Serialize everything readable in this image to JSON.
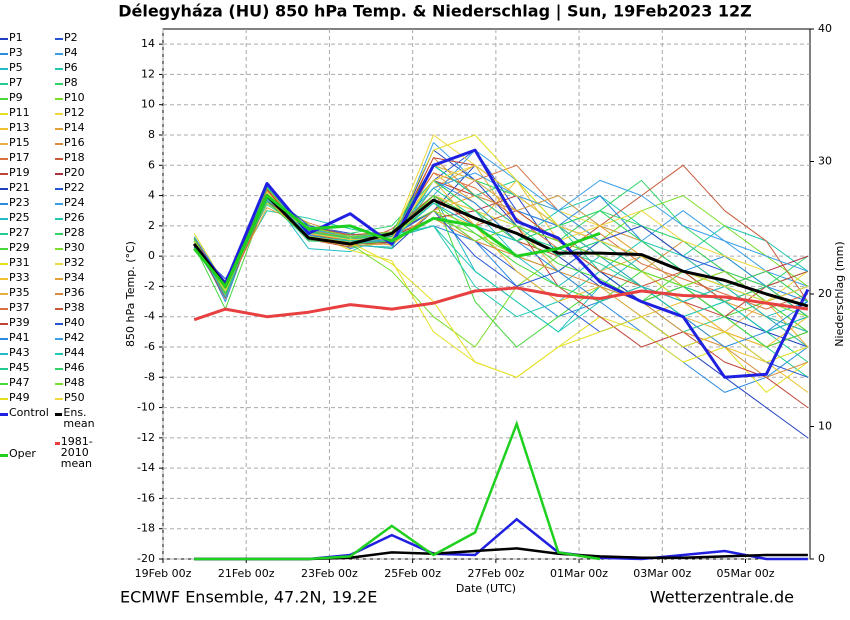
{
  "chart_data": {
    "type": "line",
    "title": "Délegyháza  (HU)  850 hPa Temp. & Niederschlag | Sun, 19Feb2023 12Z",
    "source": "ECMWF Ensemble, 47.2N, 19.2E",
    "credit": "Wetterzentrale.de",
    "xlabel": "Date (UTC)",
    "ylabel": "850 hPa Temp. (°C)",
    "y2label": "Niederschlag (mm)",
    "xlim": [
      0,
      15.55
    ],
    "xticks": [
      {
        "value": 0,
        "label": "19Feb 00z"
      },
      {
        "value": 2,
        "label": "21Feb 00z"
      },
      {
        "value": 4,
        "label": "23Feb 00z"
      },
      {
        "value": 6,
        "label": "25Feb 00z"
      },
      {
        "value": 8,
        "label": "27Feb 00z"
      },
      {
        "value": 10,
        "label": "01Mar 00z"
      },
      {
        "value": 12,
        "label": "03Mar 00z"
      },
      {
        "value": 14,
        "label": "05Mar 00z"
      }
    ],
    "ylim": [
      -20,
      15
    ],
    "yticks": [
      -20,
      -18,
      -16,
      -14,
      -12,
      -10,
      -8,
      -6,
      -4,
      -2,
      0,
      2,
      4,
      6,
      8,
      10,
      12,
      14
    ],
    "y2lim": [
      0,
      40
    ],
    "y2ticks": [
      0,
      10,
      20,
      30,
      40
    ],
    "grid": true,
    "x": [
      0.75,
      1.5,
      2.5,
      3.5,
      4.5,
      5.5,
      6.5,
      7.5,
      8.5,
      9.5,
      10.5,
      11.5,
      12.5,
      13.5,
      14.5,
      15.5
    ],
    "series": [
      {
        "name": "P1",
        "color": "#1f3fbf",
        "values": [
          1,
          -2.5,
          4,
          1.2,
          0.8,
          0.5,
          3,
          6,
          4,
          0,
          -2,
          -4,
          -6,
          -8,
          -10,
          -12
        ]
      },
      {
        "name": "P2",
        "color": "#2554d4",
        "values": [
          0.5,
          -1.5,
          3.5,
          2,
          1.5,
          1,
          5,
          7,
          3,
          2,
          1,
          0,
          -1,
          -3,
          -5,
          -4
        ]
      },
      {
        "name": "P3",
        "color": "#2a8ae0",
        "values": [
          1.2,
          -3,
          4.5,
          1.8,
          0.5,
          1.2,
          2,
          1,
          -2,
          -4,
          -3,
          -5,
          -7,
          -9,
          -8,
          -6
        ]
      },
      {
        "name": "P4",
        "color": "#3a9fe8",
        "values": [
          0.8,
          -2,
          3.8,
          1,
          1,
          0.8,
          7.5,
          5,
          3,
          4,
          2,
          1,
          3,
          1,
          -1,
          -2
        ]
      },
      {
        "name": "P5",
        "color": "#22bcc8",
        "values": [
          1,
          -2.2,
          4.2,
          0.5,
          0.3,
          1.5,
          4,
          -1,
          -3,
          -5,
          -2,
          0,
          -1,
          -2,
          -4,
          -3
        ]
      },
      {
        "name": "P6",
        "color": "#20c8b0",
        "values": [
          0.6,
          -1.8,
          3,
          2.5,
          1.8,
          1.3,
          3.5,
          2,
          1,
          3,
          4,
          2,
          0,
          2,
          1,
          -1
        ]
      },
      {
        "name": "P7",
        "color": "#22cc90",
        "values": [
          1.1,
          -2.6,
          4.8,
          1.5,
          0.8,
          0.5,
          6,
          4,
          5,
          2,
          -1,
          -3,
          -5,
          -4,
          -6,
          -8
        ]
      },
      {
        "name": "P8",
        "color": "#30d468",
        "values": [
          0.9,
          -2,
          3.6,
          1.2,
          1.5,
          2,
          5,
          3,
          2,
          1,
          3,
          5,
          2,
          0,
          -2,
          0
        ]
      },
      {
        "name": "P9",
        "color": "#46d83e",
        "values": [
          0.7,
          -3.5,
          3.9,
          1.8,
          1,
          1.6,
          4,
          -3,
          -6,
          -4,
          -2,
          -3,
          -1,
          -2,
          -3,
          -5
        ]
      },
      {
        "name": "P10",
        "color": "#7add28",
        "values": [
          1,
          -2.3,
          4.1,
          2.1,
          0.6,
          1,
          2.5,
          1.5,
          0,
          -1,
          1,
          3,
          4,
          2,
          0,
          -2
        ]
      },
      {
        "name": "P11",
        "color": "#e4e020",
        "values": [
          1.5,
          -1.9,
          4.5,
          1.6,
          0.4,
          -0.3,
          -5,
          -7,
          -8,
          -6,
          -4,
          -5,
          -7,
          -6,
          -9,
          -7
        ]
      },
      {
        "name": "P12",
        "color": "#f0d840",
        "values": [
          0.8,
          -2.1,
          3.7,
          1.3,
          0.9,
          1.2,
          8,
          6,
          4,
          3,
          2,
          0,
          -2,
          -4,
          -3,
          -1
        ]
      },
      {
        "name": "P13",
        "color": "#eec030",
        "values": [
          1,
          -2.4,
          4,
          1,
          1.2,
          0.7,
          3,
          2,
          5,
          1,
          -1,
          -2,
          -4,
          -6,
          -7,
          -9
        ]
      },
      {
        "name": "P14",
        "color": "#e4a038",
        "values": [
          0.9,
          -2.2,
          3.2,
          1.9,
          0.7,
          1.5,
          5.5,
          3.5,
          1,
          0,
          2,
          1,
          -1,
          -3,
          -4,
          -6
        ]
      },
      {
        "name": "P15",
        "color": "#e8b040",
        "values": [
          1.2,
          -2.6,
          4.4,
          1.4,
          1.1,
          0.9,
          4.5,
          6,
          2,
          -1,
          -3,
          -2,
          -4,
          -5,
          -3,
          -2
        ]
      },
      {
        "name": "P16",
        "color": "#d88c3c",
        "values": [
          0.7,
          -2,
          3.5,
          2.2,
          1.3,
          1.1,
          6.5,
          4,
          3,
          1,
          0,
          -1,
          1,
          -1,
          -2,
          -4
        ]
      },
      {
        "name": "P17",
        "color": "#d87040",
        "values": [
          1,
          -1.7,
          4.2,
          1.7,
          1,
          1.4,
          3,
          5,
          6,
          3,
          1,
          -1,
          -3,
          -5,
          -6,
          -5
        ]
      },
      {
        "name": "P18",
        "color": "#c85838",
        "values": [
          1.1,
          -2.3,
          3.9,
          1.1,
          0.6,
          1.8,
          4,
          3,
          1,
          0,
          2,
          4,
          6,
          3,
          1,
          -3
        ]
      },
      {
        "name": "P19",
        "color": "#c04436",
        "values": [
          0.9,
          -2.8,
          4.6,
          1.5,
          0.9,
          1,
          5,
          4,
          2,
          -2,
          -4,
          -6,
          -5,
          -7,
          -8,
          -10
        ]
      },
      {
        "name": "P20",
        "color": "#b03040",
        "values": [
          0.8,
          -2.1,
          4,
          1.6,
          1.2,
          1.3,
          2.5,
          3,
          4,
          2,
          1,
          2,
          0,
          -2,
          -1,
          0
        ]
      },
      {
        "name": "P21",
        "color": "#1f3fbf",
        "values": [
          1,
          -2,
          3.8,
          1.2,
          1,
          0.9,
          7,
          5,
          2,
          1,
          -1,
          -3,
          -2,
          -4,
          -5,
          -6
        ]
      },
      {
        "name": "P22",
        "color": "#2554d4",
        "values": [
          0.6,
          -2.5,
          4.3,
          2,
          1.4,
          1.5,
          3,
          1,
          -1,
          -3,
          -5,
          -4,
          -6,
          -5,
          -7,
          -8
        ]
      },
      {
        "name": "P23",
        "color": "#2a8ae0",
        "values": [
          1.3,
          -1.9,
          3.6,
          1.3,
          0.8,
          1.1,
          6,
          4,
          3,
          2,
          4,
          1,
          -1,
          0,
          -2,
          -3
        ]
      },
      {
        "name": "P24",
        "color": "#3a9fe8",
        "values": [
          0.9,
          -2.4,
          4.1,
          1.8,
          1.1,
          1.2,
          4,
          7,
          5,
          3,
          1,
          0,
          -2,
          -3,
          -5,
          -4
        ]
      },
      {
        "name": "P25",
        "color": "#22bcc8",
        "values": [
          1,
          -2.2,
          4.6,
          1.4,
          0.7,
          0.6,
          5,
          3,
          0,
          -2,
          0,
          -1,
          -3,
          -2,
          -4,
          -6
        ]
      },
      {
        "name": "P26",
        "color": "#20c8b0",
        "values": [
          0.8,
          -1.8,
          3.4,
          1.7,
          1.3,
          1.4,
          2,
          -2,
          -4,
          -3,
          -1,
          1,
          0,
          -2,
          -3,
          -2
        ]
      },
      {
        "name": "P27",
        "color": "#22cc90",
        "values": [
          1.1,
          -2.7,
          4.2,
          1,
          0.9,
          1,
          4.5,
          2.5,
          1.5,
          0.5,
          -0.5,
          -2,
          -4,
          -3,
          -5,
          -7
        ]
      },
      {
        "name": "P28",
        "color": "#30d468",
        "values": [
          0.9,
          -2,
          3.9,
          1.9,
          1.2,
          1.6,
          6,
          5,
          4,
          2,
          3,
          2,
          1,
          -1,
          -2,
          -1
        ]
      },
      {
        "name": "P29",
        "color": "#46d83e",
        "values": [
          1,
          -2.3,
          4.4,
          1.5,
          1,
          1.2,
          3.5,
          1.5,
          -0.5,
          -2,
          -3,
          -1,
          -2,
          -4,
          -3,
          -5
        ]
      },
      {
        "name": "P30",
        "color": "#7add28",
        "values": [
          0.7,
          -2.1,
          3.7,
          1.2,
          0.8,
          -1,
          -4,
          -6,
          -2,
          0,
          1,
          0,
          -1,
          -3,
          -2,
          -4
        ]
      },
      {
        "name": "P31",
        "color": "#e4e020",
        "values": [
          1.2,
          -2.5,
          4,
          1.6,
          1.1,
          1.3,
          7,
          8,
          5,
          2,
          0,
          -1,
          -3,
          -2,
          -4,
          -5
        ]
      },
      {
        "name": "P32",
        "color": "#f0d840",
        "values": [
          0.8,
          -2,
          3.5,
          1.4,
          0.9,
          1,
          4,
          3,
          2,
          1,
          2,
          3,
          1,
          0,
          -1,
          -3
        ]
      },
      {
        "name": "P33",
        "color": "#eec030",
        "values": [
          1,
          -2.4,
          4.3,
          1.8,
          1.3,
          1.5,
          5,
          2,
          -1,
          -3,
          -2,
          -4,
          -3,
          -5,
          -6,
          -4
        ]
      },
      {
        "name": "P34",
        "color": "#e4a038",
        "values": [
          0.9,
          -1.9,
          3.8,
          1.1,
          0.7,
          0.8,
          3,
          4,
          3,
          4,
          2,
          0,
          -1,
          -2,
          -4,
          -5
        ]
      },
      {
        "name": "P35",
        "color": "#e8b040",
        "values": [
          1.1,
          -2.6,
          4.5,
          1.3,
          1,
          1.1,
          6,
          5,
          3,
          1,
          -1,
          0,
          -2,
          -1,
          -3,
          -6
        ]
      },
      {
        "name": "P36",
        "color": "#d88c3c",
        "values": [
          0.8,
          -2.2,
          3.9,
          1.7,
          1.2,
          1.4,
          2.5,
          1,
          0,
          -1,
          -2,
          -3,
          -5,
          -6,
          -8,
          -7
        ]
      },
      {
        "name": "P37",
        "color": "#d87040",
        "values": [
          1,
          -2,
          4.1,
          1.5,
          1,
          1.2,
          5.5,
          4.5,
          2.5,
          0.5,
          1.5,
          -0.5,
          -1.5,
          -2.5,
          -3.5,
          -2.5
        ]
      },
      {
        "name": "P38",
        "color": "#c85838",
        "values": [
          0.7,
          -2.5,
          3.6,
          1.9,
          1.4,
          1.6,
          4,
          2,
          3,
          1,
          -1,
          -2,
          -1,
          -3,
          -2,
          -4
        ]
      },
      {
        "name": "P39",
        "color": "#c04436",
        "values": [
          1.2,
          -2.1,
          4.4,
          1.2,
          0.8,
          0.9,
          6.5,
          6,
          4,
          2,
          0,
          -2,
          -3,
          -4,
          -2,
          -1
        ]
      },
      {
        "name": "P40",
        "color": "#2554d4",
        "values": [
          0.9,
          -2.3,
          4,
          1.6,
          1.1,
          1.3,
          3,
          0,
          -2,
          -1,
          1,
          2,
          0,
          -1,
          -3,
          -2
        ]
      },
      {
        "name": "P41",
        "color": "#2a8ae0",
        "values": [
          1,
          -2.2,
          4.2,
          1.4,
          0.9,
          1,
          5,
          3.5,
          1,
          -1,
          -3,
          -2,
          -4,
          -6,
          -5,
          -3
        ]
      },
      {
        "name": "P42",
        "color": "#3a9fe8",
        "values": [
          0.8,
          -1.8,
          3.7,
          1.8,
          1.3,
          1.5,
          4.5,
          5.5,
          4,
          3,
          5,
          4,
          2,
          1,
          0,
          -1
        ]
      },
      {
        "name": "P43",
        "color": "#22bcc8",
        "values": [
          1.1,
          -2.7,
          4.6,
          1.3,
          1,
          1.1,
          3.5,
          2,
          1,
          2,
          0,
          -2,
          -3,
          -2,
          -4,
          -5
        ]
      },
      {
        "name": "P44",
        "color": "#20c8b0",
        "values": [
          0.9,
          -2,
          3.8,
          1.5,
          1.2,
          1.2,
          2,
          -1,
          -3,
          -5,
          -3,
          -2,
          -4,
          -3,
          -5,
          -4
        ]
      },
      {
        "name": "P45",
        "color": "#22cc90",
        "values": [
          1,
          -2.4,
          4.1,
          1.7,
          1,
          1.3,
          6,
          4,
          2,
          0,
          1,
          -1,
          -2,
          -3,
          -2,
          -4
        ]
      },
      {
        "name": "P46",
        "color": "#30d468",
        "values": [
          0.7,
          -2.1,
          3.6,
          1.1,
          0.8,
          1,
          5,
          3,
          1,
          2,
          3,
          1,
          -1,
          -2,
          -1,
          -3
        ]
      },
      {
        "name": "P47",
        "color": "#46d83e",
        "values": [
          1.2,
          -2.5,
          4.5,
          1.6,
          1.2,
          1.4,
          4,
          2.5,
          1.5,
          -0.5,
          -1.5,
          -3,
          -2,
          -4,
          -6,
          -5
        ]
      },
      {
        "name": "P48",
        "color": "#7add28",
        "values": [
          0.8,
          -2.2,
          3.9,
          1.9,
          1.3,
          1.6,
          3,
          1,
          2,
          1,
          0,
          -1,
          -2,
          -1,
          -3,
          -4
        ]
      },
      {
        "name": "P49",
        "color": "#e4e020",
        "values": [
          1,
          -2,
          4,
          1.3,
          0.9,
          -0.5,
          -3,
          -7,
          -8,
          -6,
          -5,
          -4,
          -6,
          -5,
          -7,
          -6
        ]
      },
      {
        "name": "P50",
        "color": "#f0d840",
        "values": [
          0.9,
          -2.3,
          4.2,
          1.5,
          1.1,
          1.2,
          5,
          6,
          4,
          2,
          1,
          0,
          -1,
          -2,
          -3,
          -2
        ]
      },
      {
        "name": "Control",
        "color": "#2020e0",
        "values": [
          0.8,
          -1.8,
          4.8,
          1.5,
          2.8,
          0.8,
          6,
          7,
          2.3,
          1.2,
          -1.7,
          -3,
          -4,
          -8,
          -7.8,
          -2.2
        ],
        "precip": [
          0,
          0,
          0,
          0,
          0.3,
          1.8,
          0.4,
          0.3,
          3,
          0.5,
          0.1,
          0,
          0.3,
          0.6,
          0,
          0
        ]
      },
      {
        "name": "Ens. mean",
        "color": "#000000",
        "values": [
          0.8,
          -2,
          4,
          1.2,
          0.8,
          1.5,
          3.7,
          2.5,
          1.5,
          0.2,
          0.2,
          0.1,
          -1,
          -1.6,
          -2.5,
          -3.3
        ],
        "precip": [
          0,
          0,
          0,
          0,
          0.1,
          0.5,
          0.4,
          0.6,
          0.8,
          0.4,
          0.2,
          0.1,
          0.1,
          0.2,
          0.3,
          0.3
        ]
      },
      {
        "name": "Oper",
        "color": "#20d020",
        "values": [
          0.5,
          -2,
          4,
          1.8,
          2,
          1,
          2.5,
          2,
          0,
          0.5,
          1.5,
          null,
          null,
          null,
          null,
          null
        ],
        "precip": [
          0,
          0,
          0,
          0,
          0.2,
          2.5,
          0.3,
          2,
          10.2,
          0.5,
          0,
          null,
          null,
          null,
          null,
          null
        ]
      },
      {
        "name": "1981-2010 mean",
        "color": "#e84040",
        "values": [
          -4.2,
          -3.5,
          -4,
          -3.7,
          -3.2,
          -3.5,
          -3.1,
          -2.3,
          -2.1,
          -2.6,
          -2.8,
          -2.3,
          -2.6,
          -2.7,
          -3.1,
          -3.5
        ]
      }
    ]
  }
}
